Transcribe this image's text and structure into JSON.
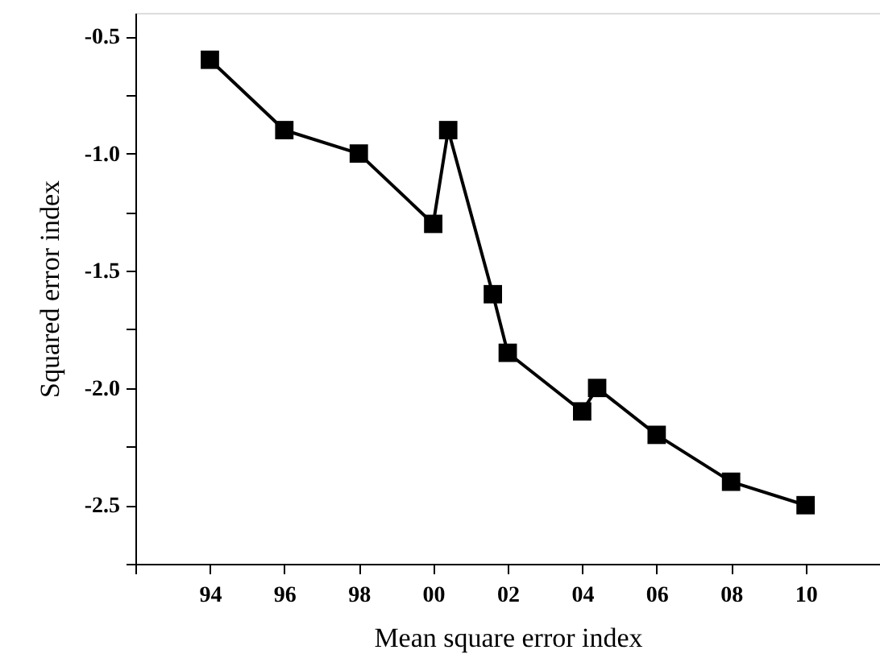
{
  "chart_data": {
    "type": "line",
    "xlabel": "Mean square error index",
    "ylabel": "Squared error index",
    "x": [
      "1994",
      "1996",
      "1998",
      "2000",
      "2000-05-27",
      "2001-08-08",
      "2002",
      "2004",
      "2004-05-27",
      "2006",
      "2008",
      "2010"
    ],
    "values": [
      -0.6,
      -0.9,
      -1.0,
      -1.3,
      -0.9,
      -1.6,
      -1.85,
      -2.1,
      -2.0,
      -2.2,
      -2.4,
      -2.5
    ],
    "color": "#000000",
    "marker": "square",
    "line_style": "solid",
    "grid": false,
    "xlim": [
      "1992",
      "2012"
    ],
    "xticks": [
      {
        "value": "1992",
        "label": null
      },
      {
        "value": "1994",
        "label": "94"
      },
      {
        "value": "1996",
        "label": "96"
      },
      {
        "value": "1998",
        "label": "98"
      },
      {
        "value": "2000",
        "label": "00"
      },
      {
        "value": "2002",
        "label": "02"
      },
      {
        "value": "2004",
        "label": "04"
      },
      {
        "value": "2006",
        "label": "06"
      },
      {
        "value": "2008",
        "label": "08"
      },
      {
        "value": "2010",
        "label": "10"
      }
    ],
    "ylim": [
      -2.75,
      -0.4
    ],
    "yticks": [
      {
        "value": -2.75,
        "label": null
      },
      {
        "value": -2.5,
        "label": "-2.5"
      },
      {
        "value": -2.25,
        "label": null
      },
      {
        "value": -2.0,
        "label": "-2.0"
      },
      {
        "value": -1.75,
        "label": null
      },
      {
        "value": -1.5,
        "label": "-1.5"
      },
      {
        "value": -1.25,
        "label": null
      },
      {
        "value": -1.0,
        "label": "-1.0"
      },
      {
        "value": -0.75,
        "label": null
      },
      {
        "value": -0.5,
        "label": "-0.5"
      }
    ]
  }
}
